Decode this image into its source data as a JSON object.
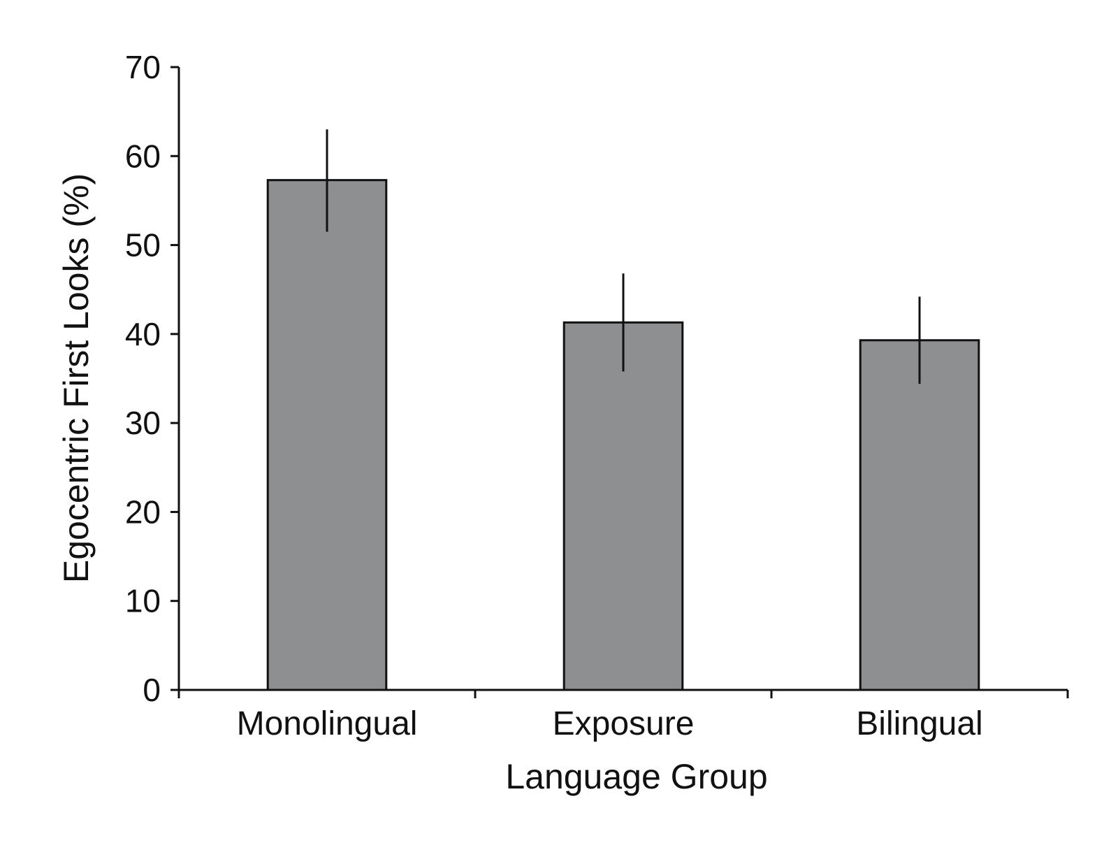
{
  "chart_data": {
    "type": "bar",
    "title": "",
    "xlabel": "Language Group",
    "ylabel": "Egocentric First Looks (%)",
    "categories": [
      "Monolingual",
      "Exposure",
      "Bilingual"
    ],
    "values": [
      57.3,
      41.3,
      39.3
    ],
    "error_bars": [
      {
        "low": 51.5,
        "high": 63.0
      },
      {
        "low": 35.8,
        "high": 46.8
      },
      {
        "low": 34.4,
        "high": 44.2
      }
    ],
    "ylim": [
      0,
      70
    ],
    "yticks": [
      "0",
      "10",
      "20",
      "30",
      "40",
      "50",
      "60",
      "70"
    ],
    "grid": false,
    "legend": "none",
    "bar_color": "#8e8f90",
    "edge_color": "#111111"
  }
}
